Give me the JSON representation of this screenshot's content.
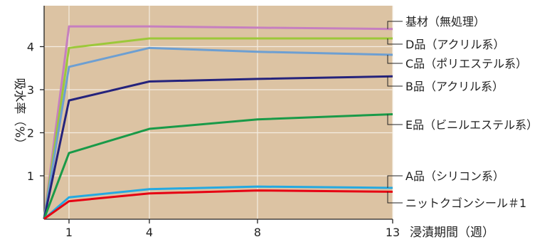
{
  "chart_data": {
    "type": "line",
    "ylabel": "吸水率（%）",
    "xlabel": "浸漬期間（週）",
    "x": [
      0,
      1,
      4,
      8,
      13
    ],
    "xticks": [
      1,
      4,
      8,
      13
    ],
    "yticks": [
      1,
      2,
      3,
      4
    ],
    "xlim": [
      0,
      13
    ],
    "ylim": [
      0,
      4.9
    ],
    "grid": true,
    "background_color": "#dcc3a3",
    "series": [
      {
        "name": "基材（無処理）",
        "color": "#c67fc0",
        "values": [
          0,
          4.47,
          4.47,
          4.44,
          4.41
        ]
      },
      {
        "name": "D品（アクリル系）",
        "color": "#9cc83a",
        "values": [
          0,
          3.97,
          4.19,
          4.19,
          4.19
        ]
      },
      {
        "name": "C品（ポリエステル系）",
        "color": "#6d9fd2",
        "values": [
          0,
          3.53,
          3.97,
          3.88,
          3.81
        ]
      },
      {
        "name": "B品（アクリル系）",
        "color": "#25237c",
        "values": [
          0,
          2.75,
          3.19,
          3.25,
          3.31
        ]
      },
      {
        "name": "E品（ビニルエステル系）",
        "color": "#199a48",
        "values": [
          0,
          1.53,
          2.09,
          2.31,
          2.43
        ]
      },
      {
        "name": "A品（シリコン系）",
        "color": "#24a9e1",
        "values": [
          0,
          0.5,
          0.69,
          0.75,
          0.72
        ]
      },
      {
        "name": "ニットクゴンシール＃1",
        "color": "#e60012",
        "values": [
          0,
          0.41,
          0.59,
          0.66,
          0.63
        ]
      }
    ]
  }
}
